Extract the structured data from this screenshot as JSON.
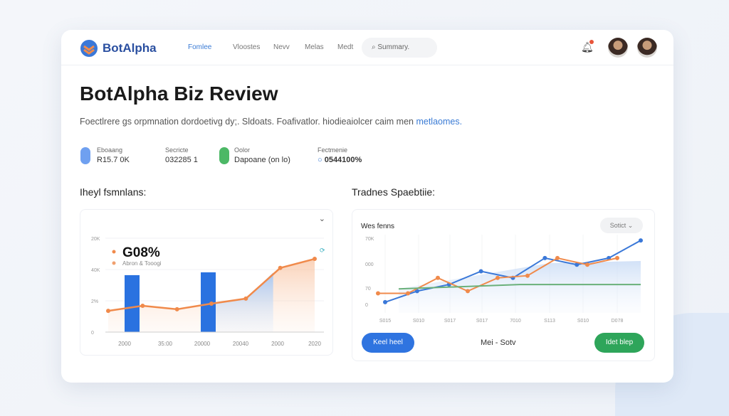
{
  "nav": {
    "brand": "BotAlpha",
    "links": [
      "Fomlee",
      "Vloostes",
      "Nevv",
      "Melas",
      "Medt"
    ],
    "search_placeholder": "Summary."
  },
  "header": {
    "title": "BotAlpha Biz Review",
    "subtitle": "Foectlrere gs orpmnation dordoetivg dy;. Sldoats. Foafivatlor. hiodieaiolcer caim men ",
    "subtitle_link": "metlaomes."
  },
  "stats": [
    {
      "label": "Eboaang",
      "value": "R15.7 0K",
      "color": "#6fa0f0"
    },
    {
      "label": "Secricte",
      "value": "032285 1"
    },
    {
      "label": "Oolor",
      "value": "Dapoane (on lo)",
      "color": "#4cb866"
    },
    {
      "label": "Fectmenie",
      "value": "0544100%"
    }
  ],
  "left": {
    "section_title": "Iheyl fsmnlans:",
    "headline": "G08%",
    "legend": "Abron & Tooogi",
    "chart_data": {
      "type": "bar+area",
      "y_ticks": [
        "0",
        "2%",
        "40K",
        "20K"
      ],
      "x_ticks": [
        "2000",
        "35:00",
        "20000",
        "20040",
        "2000",
        "2020"
      ],
      "line": [
        0.68,
        0.84,
        0.73,
        0.91,
        1.07,
        2.05,
        2.34
      ],
      "bars": [
        1.82,
        1.91
      ],
      "colors": {
        "line": "#f08a4b",
        "bar": "#2a72e0"
      }
    }
  },
  "right": {
    "section_title": "Tradnes Spaebtiie:",
    "panel_title": "Wes fenns",
    "dropdown": "Sotict",
    "chart_data": {
      "type": "line",
      "y_ticks": [
        "0",
        "70",
        "000",
        "70K"
      ],
      "x_ticks": [
        "S015",
        "S010",
        "S017",
        "S017",
        "7010",
        "S113",
        "S010",
        "D078"
      ],
      "series": [
        {
          "color": "#3a78d8",
          "values": [
            0.1,
            0.6,
            0.9,
            1.5,
            1.2,
            2.1,
            1.8,
            2.1,
            2.9
          ]
        },
        {
          "color": "#f08a4b",
          "values": [
            0.5,
            0.5,
            1.2,
            0.6,
            1.2,
            1.3,
            2.1,
            1.8,
            2.1
          ]
        },
        {
          "color": "#6ab07a",
          "values": [
            0.7,
            0.9,
            0.9
          ]
        }
      ]
    },
    "left_button": "Keel heel",
    "center_text": "Mei  -  Sotv",
    "right_button": "Idet blep"
  }
}
